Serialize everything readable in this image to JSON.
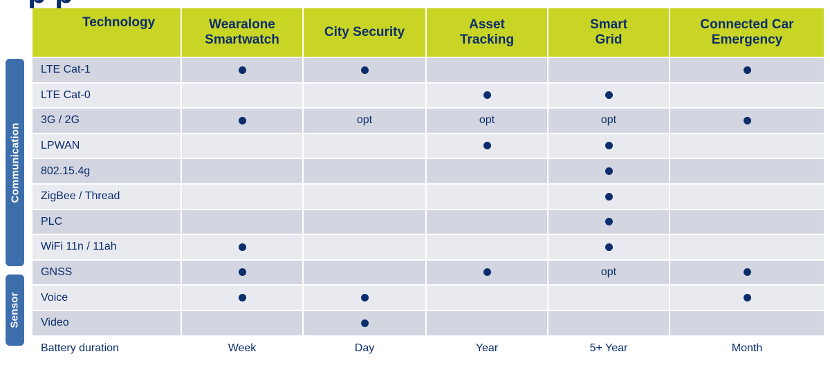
{
  "title_fragment": "                   p                                                     p",
  "side_labels": {
    "communication": "Communication",
    "sensor": "Sensor"
  },
  "columns": [
    "Technology",
    "Wearalone Smartwatch",
    "City Security",
    "Asset Tracking",
    "Smart Grid",
    "Connected Car Emergency"
  ],
  "column_lines": [
    [
      "Technology"
    ],
    [
      "Wearalone",
      "Smartwatch"
    ],
    [
      "City Security"
    ],
    [
      "Asset",
      "Tracking"
    ],
    [
      "Smart",
      "Grid"
    ],
    [
      "Connected Car",
      "Emergency"
    ]
  ],
  "rows": [
    {
      "label": "LTE Cat-1",
      "band": "a",
      "cells": [
        "dot",
        "dot",
        "",
        "",
        "dot"
      ]
    },
    {
      "label": "LTE Cat-0",
      "band": "b",
      "cells": [
        "",
        "",
        "dot",
        "dot",
        ""
      ]
    },
    {
      "label": "3G / 2G",
      "band": "a",
      "cells": [
        "dot",
        "opt",
        "opt",
        "opt",
        "dot"
      ]
    },
    {
      "label": "LPWAN",
      "band": "b",
      "cells": [
        "",
        "",
        "dot",
        "dot",
        ""
      ]
    },
    {
      "label": "802.15.4g",
      "band": "a",
      "cells": [
        "",
        "",
        "",
        "dot",
        ""
      ]
    },
    {
      "label": "ZigBee / Thread",
      "band": "b",
      "cells": [
        "",
        "",
        "",
        "dot",
        ""
      ]
    },
    {
      "label": "PLC",
      "band": "a",
      "cells": [
        "",
        "",
        "",
        "dot",
        ""
      ]
    },
    {
      "label": "WiFi 11n / 11ah",
      "band": "b",
      "cells": [
        "dot",
        "",
        "",
        "dot",
        ""
      ]
    },
    {
      "label": "GNSS",
      "band": "a",
      "cells": [
        "dot",
        "",
        "dot",
        "opt",
        "dot"
      ]
    },
    {
      "label": "Voice",
      "band": "b",
      "cells": [
        "dot",
        "dot",
        "",
        "",
        "dot"
      ]
    },
    {
      "label": "Video",
      "band": "a",
      "cells": [
        "",
        "dot",
        "",
        "",
        ""
      ]
    },
    {
      "label": "Battery duration",
      "band": "w",
      "cells": [
        "Week",
        "Day",
        "Year",
        "5+ Year",
        "Month"
      ]
    }
  ],
  "colors": {
    "header_bg": "#c9d525",
    "header_text": "#0b2d6b",
    "band_dark": "#d3d6e1",
    "band_light": "#e9eaf0",
    "side_label_bg": "#3d6eac",
    "dot": "#0b2d6b"
  }
}
